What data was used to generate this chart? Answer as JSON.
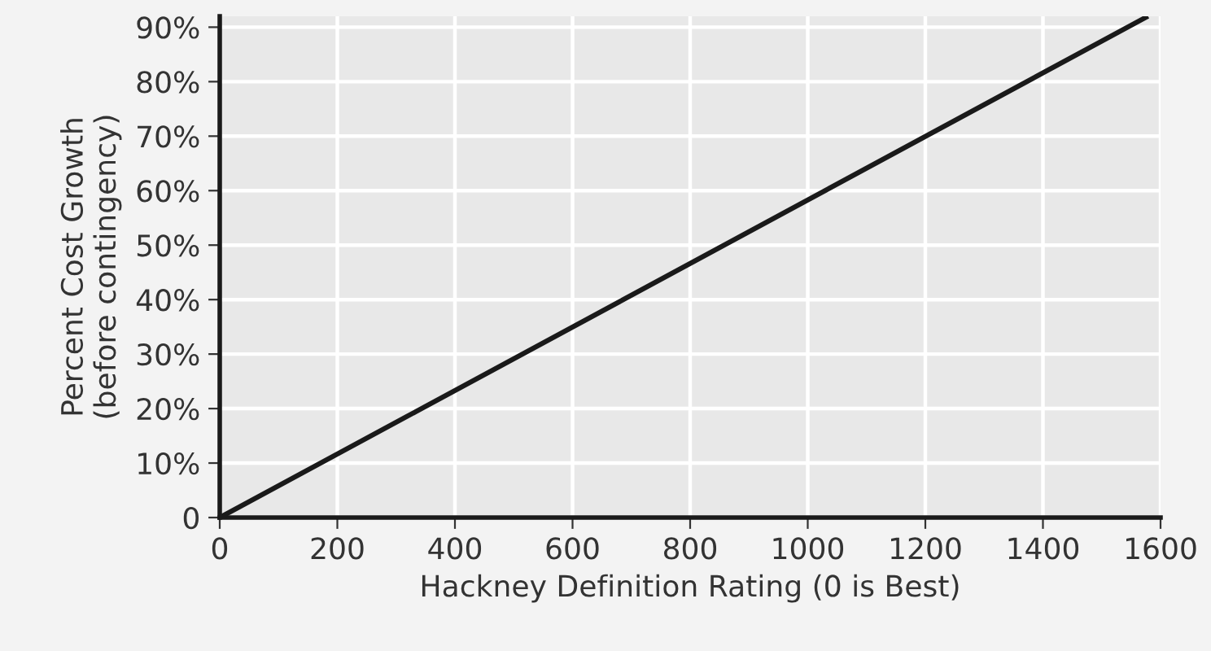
{
  "chart_data": {
    "type": "line",
    "xlabel": "Hackney Definition Rating (0 is Best)",
    "ylabel": "Percent Cost Growth\n(before contingency)",
    "x": [
      0,
      1575
    ],
    "series": [
      {
        "color": "#1a1a1a",
        "values": [
          0,
          91.8
        ]
      }
    ],
    "xlim": [
      0,
      1600
    ],
    "xticks": [
      0,
      200,
      400,
      600,
      800,
      1000,
      1200,
      1400,
      1600
    ],
    "ylim": [
      0,
      92
    ],
    "yticks": [
      0,
      {
        "value": 10,
        "label": "10%"
      },
      {
        "value": 20,
        "label": "20%"
      },
      {
        "value": 30,
        "label": "30%"
      },
      {
        "value": 40,
        "label": "40%"
      },
      {
        "value": 50,
        "label": "50%"
      },
      {
        "value": 60,
        "label": "60%"
      },
      {
        "value": 70,
        "label": "70%"
      },
      {
        "value": 80,
        "label": "80%"
      },
      {
        "value": 90,
        "label": "90%"
      }
    ],
    "grid": true,
    "legend": false,
    "marker": "none",
    "line_style": "solid"
  }
}
